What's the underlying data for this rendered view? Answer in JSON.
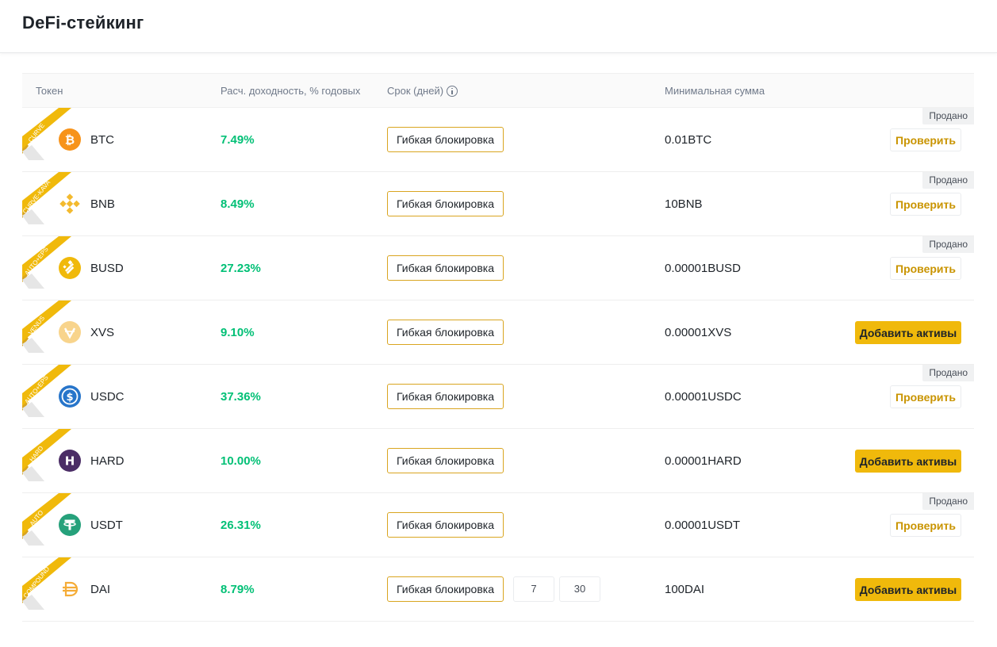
{
  "page": {
    "title": "DeFi-стейкинг"
  },
  "table": {
    "headers": {
      "token": "Токен",
      "apy": "Расч. доходность, % годовых",
      "term": "Срок (дней)",
      "min_amount": "Минимальная сумма"
    },
    "rows": [
      {
        "ribbon": "CURVE",
        "coin_icon": "btc-icon",
        "token": "BTC",
        "apy": "7.49%",
        "term_label": "Гибкая блокировка",
        "min_amount": "0.01BTC",
        "sold_label": "Продано",
        "action_label": "Проверить",
        "action_type": "check"
      },
      {
        "ribbon": "CURVE-KAVA",
        "coin_icon": "bnb-icon",
        "token": "BNB",
        "apy": "8.49%",
        "term_label": "Гибкая блокировка",
        "min_amount": "10BNB",
        "sold_label": "Продано",
        "action_label": "Проверить",
        "action_type": "check"
      },
      {
        "ribbon": "AUTO+EPS",
        "coin_icon": "busd-icon",
        "token": "BUSD",
        "apy": "27.23%",
        "term_label": "Гибкая блокировка",
        "min_amount": "0.00001BUSD",
        "sold_label": "Продано",
        "action_label": "Проверить",
        "action_type": "check"
      },
      {
        "ribbon": "VENUS",
        "coin_icon": "xvs-icon",
        "token": "XVS",
        "apy": "9.10%",
        "term_label": "Гибкая блокировка",
        "min_amount": "0.00001XVS",
        "action_label": "Добавить активы",
        "action_type": "add"
      },
      {
        "ribbon": "AUTO+EPS",
        "coin_icon": "usdc-icon",
        "token": "USDC",
        "apy": "37.36%",
        "term_label": "Гибкая блокировка",
        "min_amount": "0.00001USDC",
        "sold_label": "Продано",
        "action_label": "Проверить",
        "action_type": "check"
      },
      {
        "ribbon": "HARD",
        "coin_icon": "hard-icon",
        "token": "HARD",
        "apy": "10.00%",
        "term_label": "Гибкая блокировка",
        "min_amount": "0.00001HARD",
        "action_label": "Добавить активы",
        "action_type": "add"
      },
      {
        "ribbon": "AUTO",
        "coin_icon": "usdt-icon",
        "token": "USDT",
        "apy": "26.31%",
        "term_label": "Гибкая блокировка",
        "min_amount": "0.00001USDT",
        "sold_label": "Продано",
        "action_label": "Проверить",
        "action_type": "check"
      },
      {
        "ribbon": "COMPOUND",
        "coin_icon": "dai-icon",
        "token": "DAI",
        "apy": "8.79%",
        "term_label": "Гибкая блокировка",
        "term_options": [
          "7",
          "30"
        ],
        "min_amount": "100DAI",
        "action_label": "Добавить активы",
        "action_type": "add"
      }
    ]
  },
  "colors": {
    "accent": "#f0b90b",
    "apy_green": "#02c076",
    "check_text": "#c99400"
  }
}
